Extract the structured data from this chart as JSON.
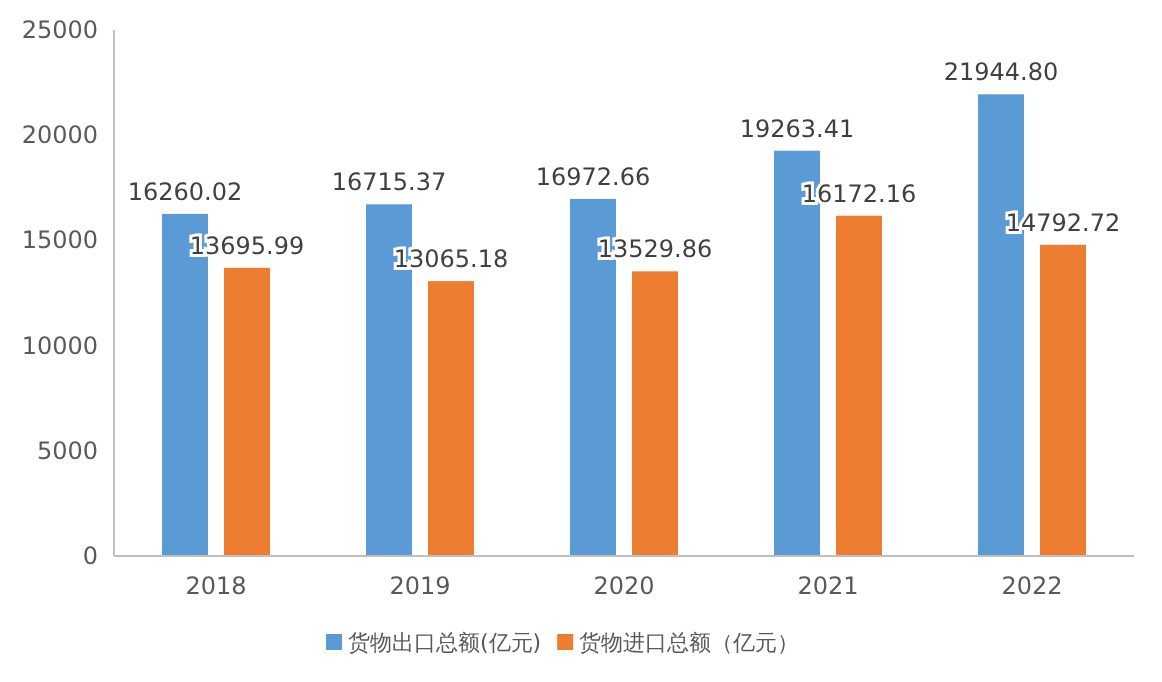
{
  "chart_data": {
    "type": "bar",
    "categories": [
      "2018",
      "2019",
      "2020",
      "2021",
      "2022"
    ],
    "series": [
      {
        "name": "货物出口总额(亿元)",
        "color": "#5b9bd5",
        "values": [
          16260.02,
          16715.37,
          16972.66,
          19263.41,
          21944.8
        ],
        "value_labels": [
          "16260.02",
          "16715.37",
          "16972.66",
          "19263.41",
          "21944.80"
        ]
      },
      {
        "name": "货物进口总额（亿元）",
        "color": "#ed7d31",
        "values": [
          13695.99,
          13065.18,
          13529.86,
          16172.16,
          14792.72
        ],
        "value_labels": [
          "13695.99",
          "13065.18",
          "13529.86",
          "16172.16",
          "14792.72"
        ]
      }
    ],
    "ylim": [
      0,
      25000
    ],
    "yticks": [
      0,
      5000,
      10000,
      15000,
      20000,
      25000
    ],
    "legend": "bottom",
    "grid": false
  }
}
